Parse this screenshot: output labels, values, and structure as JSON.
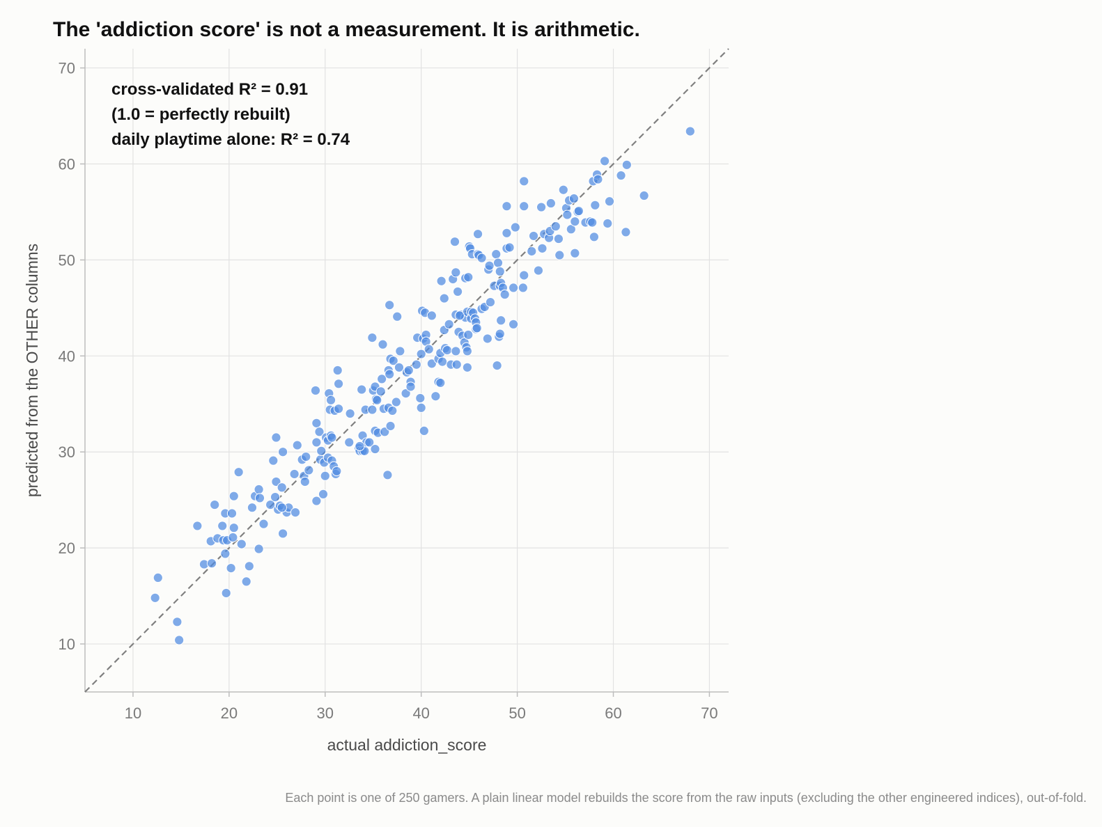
{
  "chart_data": {
    "type": "scatter",
    "title": "The 'addiction score' is not a measurement. It is arithmetic.",
    "xlabel": "actual addiction_score",
    "ylabel": "predicted from the OTHER columns",
    "xlim": [
      5,
      72
    ],
    "ylim": [
      5,
      72
    ],
    "xticks": [
      10,
      20,
      30,
      40,
      50,
      60,
      70
    ],
    "yticks": [
      10,
      20,
      30,
      40,
      50,
      60,
      70
    ],
    "grid": true,
    "reference_line": "y = x (dashed)",
    "annotations": [
      "cross-validated R² = 0.91",
      "(1.0 = perfectly rebuilt)",
      "daily playtime alone: R² = 0.74"
    ],
    "caption": "Each point is one of 250 gamers. A plain linear model rebuilds the score from the raw inputs (excluding the other engineered indices), out-of-fold.",
    "point_color": "#4f8be0",
    "points": [
      [
        12.3,
        14.8
      ],
      [
        12.6,
        16.9
      ],
      [
        14.6,
        12.3
      ],
      [
        14.8,
        10.4
      ],
      [
        16.7,
        22.3
      ],
      [
        17.4,
        18.3
      ],
      [
        18.1,
        20.7
      ],
      [
        18.2,
        18.4
      ],
      [
        18.5,
        24.5
      ],
      [
        18.8,
        21.0
      ],
      [
        19.3,
        22.3
      ],
      [
        19.4,
        20.8
      ],
      [
        19.6,
        19.4
      ],
      [
        19.6,
        23.6
      ],
      [
        19.7,
        15.3
      ],
      [
        19.8,
        20.8
      ],
      [
        20.2,
        17.9
      ],
      [
        20.3,
        23.6
      ],
      [
        20.4,
        21.1
      ],
      [
        20.5,
        22.1
      ],
      [
        20.5,
        25.4
      ],
      [
        21.0,
        27.9
      ],
      [
        21.3,
        20.4
      ],
      [
        21.8,
        16.5
      ],
      [
        22.1,
        18.1
      ],
      [
        22.4,
        24.2
      ],
      [
        22.7,
        25.4
      ],
      [
        23.1,
        26.1
      ],
      [
        23.1,
        19.9
      ],
      [
        23.2,
        25.2
      ],
      [
        23.6,
        22.5
      ],
      [
        24.3,
        24.5
      ],
      [
        24.6,
        29.1
      ],
      [
        24.8,
        25.3
      ],
      [
        24.9,
        31.5
      ],
      [
        24.9,
        26.9
      ],
      [
        25.1,
        24.0
      ],
      [
        25.3,
        24.4
      ],
      [
        25.5,
        26.3
      ],
      [
        25.6,
        30.0
      ],
      [
        25.6,
        21.5
      ],
      [
        26.0,
        23.7
      ],
      [
        26.2,
        24.2
      ],
      [
        26.8,
        27.7
      ],
      [
        26.9,
        23.7
      ],
      [
        27.1,
        30.7
      ],
      [
        27.6,
        29.2
      ],
      [
        27.8,
        27.5
      ],
      [
        27.9,
        26.9
      ],
      [
        28.0,
        29.5
      ],
      [
        28.3,
        28.1
      ],
      [
        29.0,
        36.4
      ],
      [
        29.1,
        33.0
      ],
      [
        29.1,
        31.0
      ],
      [
        29.1,
        24.9
      ],
      [
        29.4,
        32.1
      ],
      [
        29.5,
        29.2
      ],
      [
        29.6,
        30.1
      ],
      [
        29.8,
        25.6
      ],
      [
        29.9,
        28.9
      ],
      [
        30.0,
        27.5
      ],
      [
        30.1,
        31.5
      ],
      [
        30.3,
        31.2
      ],
      [
        30.3,
        29.4
      ],
      [
        30.4,
        36.1
      ],
      [
        30.5,
        34.4
      ],
      [
        30.6,
        35.4
      ],
      [
        30.6,
        31.7
      ],
      [
        30.7,
        29.1
      ],
      [
        30.7,
        31.5
      ],
      [
        30.9,
        28.5
      ],
      [
        31.0,
        34.3
      ],
      [
        31.1,
        27.7
      ],
      [
        31.2,
        28.0
      ],
      [
        31.3,
        38.5
      ],
      [
        31.4,
        37.1
      ],
      [
        31.4,
        34.5
      ],
      [
        32.5,
        31.0
      ],
      [
        32.6,
        34.0
      ],
      [
        33.5,
        30.4
      ],
      [
        33.6,
        30.1
      ],
      [
        33.8,
        36.5
      ],
      [
        33.9,
        31.7
      ],
      [
        33.9,
        30.1
      ],
      [
        34.1,
        30.1
      ],
      [
        34.2,
        34.4
      ],
      [
        34.3,
        31.0
      ],
      [
        34.6,
        31.0
      ],
      [
        34.9,
        41.9
      ],
      [
        34.9,
        34.4
      ],
      [
        35.0,
        36.4
      ],
      [
        35.2,
        36.8
      ],
      [
        35.2,
        32.2
      ],
      [
        35.2,
        30.3
      ],
      [
        35.3,
        35.5
      ],
      [
        35.4,
        35.4
      ],
      [
        35.5,
        32.0
      ],
      [
        35.8,
        36.3
      ],
      [
        35.9,
        37.6
      ],
      [
        36.0,
        41.2
      ],
      [
        36.1,
        34.5
      ],
      [
        36.2,
        32.1
      ],
      [
        36.5,
        27.6
      ],
      [
        36.6,
        34.6
      ],
      [
        36.6,
        38.5
      ],
      [
        36.7,
        45.3
      ],
      [
        36.7,
        38.1
      ],
      [
        36.8,
        39.7
      ],
      [
        36.8,
        32.7
      ],
      [
        37.0,
        34.3
      ],
      [
        37.1,
        39.5
      ],
      [
        37.4,
        35.2
      ],
      [
        37.5,
        44.1
      ],
      [
        37.7,
        38.8
      ],
      [
        37.8,
        40.5
      ],
      [
        38.4,
        36.1
      ],
      [
        38.5,
        38.3
      ],
      [
        38.7,
        38.5
      ],
      [
        38.9,
        37.3
      ],
      [
        38.9,
        36.8
      ],
      [
        39.5,
        39.1
      ],
      [
        39.6,
        41.9
      ],
      [
        39.9,
        35.6
      ],
      [
        40.0,
        34.6
      ],
      [
        40.0,
        40.2
      ],
      [
        40.1,
        44.7
      ],
      [
        40.2,
        41.8
      ],
      [
        40.3,
        32.2
      ],
      [
        40.4,
        44.5
      ],
      [
        40.5,
        42.2
      ],
      [
        40.5,
        41.5
      ],
      [
        40.8,
        40.7
      ],
      [
        41.1,
        39.2
      ],
      [
        41.1,
        44.2
      ],
      [
        41.5,
        35.8
      ],
      [
        41.8,
        37.3
      ],
      [
        41.8,
        39.7
      ],
      [
        42.0,
        40.3
      ],
      [
        42.0,
        37.2
      ],
      [
        42.1,
        47.8
      ],
      [
        42.2,
        39.4
      ],
      [
        42.4,
        46.0
      ],
      [
        42.4,
        42.7
      ],
      [
        42.5,
        40.8
      ],
      [
        42.7,
        40.6
      ],
      [
        42.9,
        43.3
      ],
      [
        43.1,
        39.1
      ],
      [
        43.3,
        48.0
      ],
      [
        43.5,
        51.9
      ],
      [
        43.6,
        48.7
      ],
      [
        43.6,
        44.3
      ],
      [
        43.6,
        40.5
      ],
      [
        43.7,
        39.1
      ],
      [
        43.8,
        46.7
      ],
      [
        43.9,
        42.5
      ],
      [
        44.1,
        44.3
      ],
      [
        44.3,
        42.1
      ],
      [
        44.5,
        41.4
      ],
      [
        44.6,
        48.1
      ],
      [
        44.6,
        44.0
      ],
      [
        44.7,
        40.9
      ],
      [
        44.8,
        44.6
      ],
      [
        44.8,
        40.5
      ],
      [
        44.8,
        38.8
      ],
      [
        44.9,
        48.2
      ],
      [
        44.9,
        42.2
      ],
      [
        45.0,
        51.4
      ],
      [
        45.1,
        51.2
      ],
      [
        45.2,
        44.6
      ],
      [
        45.2,
        43.9
      ],
      [
        45.3,
        50.6
      ],
      [
        45.4,
        44.5
      ],
      [
        45.6,
        43.9
      ],
      [
        45.7,
        43.5
      ],
      [
        45.7,
        42.8
      ],
      [
        45.8,
        42.9
      ],
      [
        45.9,
        52.7
      ],
      [
        45.9,
        50.6
      ],
      [
        46.0,
        50.5
      ],
      [
        46.3,
        50.2
      ],
      [
        46.3,
        44.9
      ],
      [
        46.6,
        45.1
      ],
      [
        46.9,
        41.8
      ],
      [
        47.0,
        49.0
      ],
      [
        47.1,
        49.4
      ],
      [
        47.2,
        45.6
      ],
      [
        47.6,
        47.3
      ],
      [
        47.8,
        50.6
      ],
      [
        47.9,
        39.0
      ],
      [
        48.0,
        49.7
      ],
      [
        48.1,
        42.0
      ],
      [
        48.2,
        47.3
      ],
      [
        48.2,
        42.3
      ],
      [
        48.2,
        48.8
      ],
      [
        48.3,
        43.7
      ],
      [
        48.3,
        47.6
      ],
      [
        48.5,
        47.1
      ],
      [
        48.7,
        46.4
      ],
      [
        48.9,
        52.8
      ],
      [
        48.9,
        51.2
      ],
      [
        48.9,
        55.6
      ],
      [
        49.2,
        51.3
      ],
      [
        49.6,
        43.3
      ],
      [
        49.6,
        47.1
      ],
      [
        49.8,
        53.4
      ],
      [
        50.6,
        47.1
      ],
      [
        50.7,
        48.4
      ],
      [
        50.7,
        58.2
      ],
      [
        50.7,
        55.6
      ],
      [
        51.5,
        50.9
      ],
      [
        51.7,
        52.5
      ],
      [
        52.2,
        48.9
      ],
      [
        52.5,
        55.5
      ],
      [
        52.6,
        51.2
      ],
      [
        52.8,
        52.7
      ],
      [
        53.3,
        52.3
      ],
      [
        53.4,
        53.0
      ],
      [
        53.5,
        55.9
      ],
      [
        54.0,
        53.5
      ],
      [
        54.3,
        52.2
      ],
      [
        54.4,
        50.5
      ],
      [
        54.8,
        57.3
      ],
      [
        55.1,
        55.4
      ],
      [
        55.2,
        54.7
      ],
      [
        55.4,
        56.2
      ],
      [
        55.6,
        53.2
      ],
      [
        55.9,
        56.4
      ],
      [
        56.0,
        50.7
      ],
      [
        56.0,
        54.0
      ],
      [
        56.3,
        55.0
      ],
      [
        56.4,
        55.1
      ],
      [
        57.1,
        53.9
      ],
      [
        57.6,
        54.0
      ],
      [
        57.8,
        53.9
      ],
      [
        57.9,
        58.2
      ],
      [
        58.0,
        52.4
      ],
      [
        58.1,
        55.7
      ],
      [
        58.3,
        58.9
      ],
      [
        58.4,
        58.4
      ],
      [
        59.1,
        60.3
      ],
      [
        59.4,
        53.8
      ],
      [
        59.6,
        56.1
      ],
      [
        60.8,
        58.8
      ],
      [
        61.3,
        52.9
      ],
      [
        61.4,
        59.9
      ],
      [
        63.2,
        56.7
      ],
      [
        68.0,
        63.4
      ],
      [
        25.5,
        24.2
      ],
      [
        33.6,
        30.6
      ],
      [
        44.0,
        44.2
      ]
    ]
  }
}
